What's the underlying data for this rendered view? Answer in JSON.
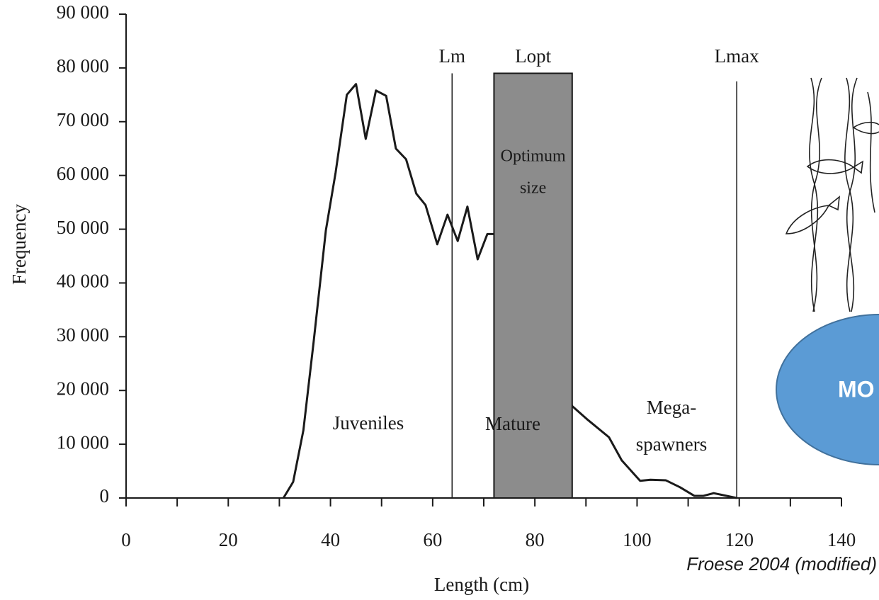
{
  "chart_data": {
    "type": "line",
    "x_label": "Length (cm)",
    "y_label": "Frequency",
    "x": [
      30.8,
      32.7,
      34.7,
      36.7,
      39.1,
      41,
      43.2,
      45,
      46.9,
      48.9,
      50.9,
      52.8,
      54.8,
      56.8,
      58.6,
      60.9,
      62.9,
      64.9,
      66.8,
      68.8,
      70.7,
      72,
      87.3,
      90.4,
      94.5,
      97,
      100.6,
      102.6,
      105.6,
      108.4,
      111.2,
      113,
      115,
      119.5
    ],
    "series": [
      {
        "color": "#1a1a1a",
        "values": [
          0,
          3000,
          12600,
          29000,
          49800,
          60500,
          75000,
          77000,
          66800,
          75800,
          74800,
          65000,
          63000,
          56600,
          54500,
          47200,
          52700,
          47800,
          54200,
          44400,
          49100,
          49100,
          17100,
          14500,
          11300,
          7000,
          3200,
          3400,
          3300,
          2000,
          400,
          400,
          900,
          0
        ]
      }
    ],
    "xlim": [
      0,
      140
    ],
    "xticks": [
      0,
      20,
      40,
      60,
      80,
      100,
      120,
      140
    ],
    "ylim": [
      0,
      90000
    ],
    "yticks": [
      {
        "value": 0,
        "label": "0"
      },
      {
        "value": 10000,
        "label": "10 000"
      },
      {
        "value": 20000,
        "label": "20 000"
      },
      {
        "value": 30000,
        "label": "30 000"
      },
      {
        "value": 40000,
        "label": "40 000"
      },
      {
        "value": 50000,
        "label": "50 000"
      },
      {
        "value": 60000,
        "label": "60 000"
      },
      {
        "value": 70000,
        "label": "70 000"
      },
      {
        "value": 80000,
        "label": "80 000"
      },
      {
        "value": 90000,
        "label": "90 000"
      }
    ],
    "band": {
      "label": "Lopt",
      "x": [
        72,
        87.3
      ],
      "top": 79000,
      "color": "#8c8c8c",
      "text": [
        "Optimum",
        "size"
      ]
    },
    "vlines": [
      {
        "label": "Lm",
        "x": 63.8,
        "top": 79000
      },
      {
        "label": "Lmax",
        "x": 119.5,
        "top": 77500
      }
    ],
    "annotations": [
      [
        "Juveniles"
      ],
      [
        "Mature"
      ],
      [
        "Mega-",
        "spawners"
      ]
    ],
    "callout": "MO",
    "source": "Froese 2004 (modified)"
  }
}
